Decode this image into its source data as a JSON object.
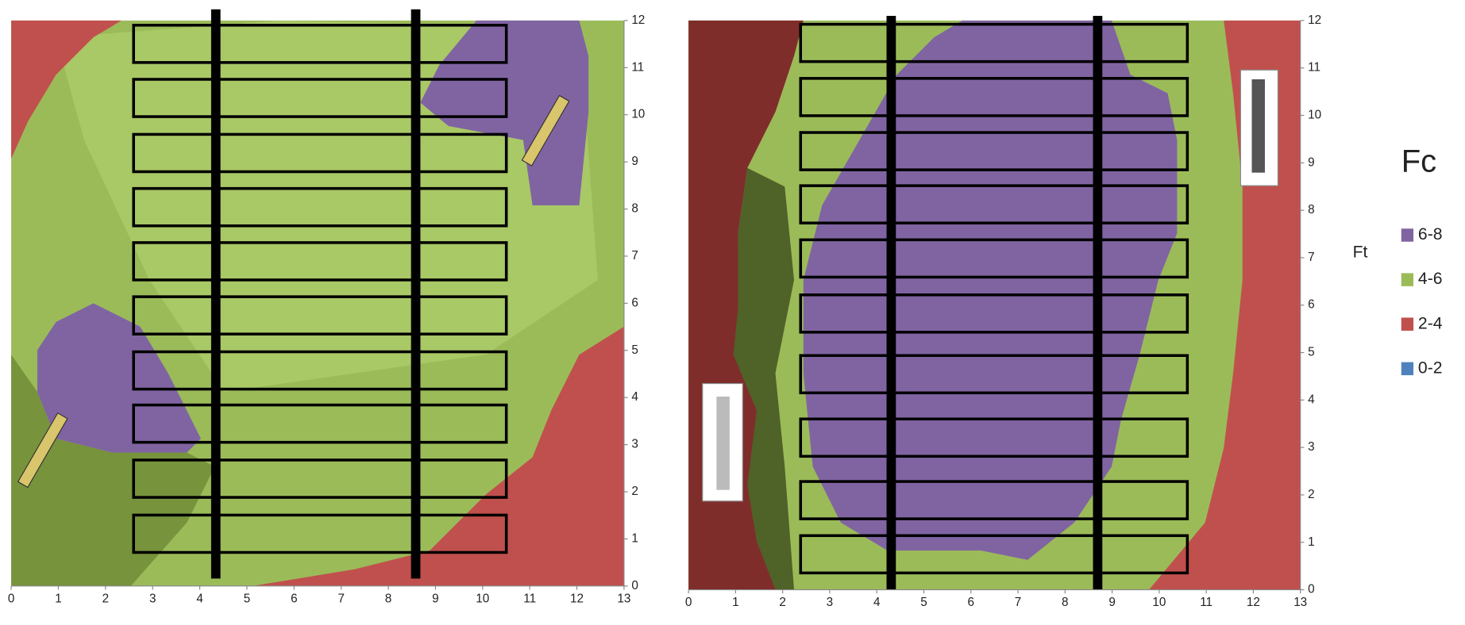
{
  "chart_data": [
    {
      "type": "contour",
      "xlim": [
        0,
        13
      ],
      "xticks": [
        0,
        1,
        2,
        3,
        4,
        5,
        6,
        7,
        8,
        9,
        10,
        11,
        12,
        13
      ],
      "ylim": [
        0,
        12
      ],
      "yticks": [
        0,
        1,
        2,
        3,
        4,
        5,
        6,
        7,
        8,
        9,
        10,
        11,
        12
      ]
    },
    {
      "type": "contour",
      "xlim": [
        0,
        13
      ],
      "xticks": [
        0,
        1,
        2,
        3,
        4,
        5,
        6,
        7,
        8,
        9,
        10,
        11,
        12,
        13
      ],
      "ylim": [
        0,
        12
      ],
      "yticks": [
        0,
        1,
        2,
        3,
        4,
        5,
        6,
        7,
        8,
        9,
        10,
        11,
        12
      ],
      "y_label": "Ft",
      "legend_title": "Fc",
      "series": [
        {
          "name": "6-8",
          "color": "#8064a2"
        },
        {
          "name": "4-6",
          "color": "#9bbb59"
        },
        {
          "name": "2-4",
          "color": "#c0504d"
        },
        {
          "name": "0-2",
          "color": "#4f81bd"
        }
      ]
    }
  ]
}
